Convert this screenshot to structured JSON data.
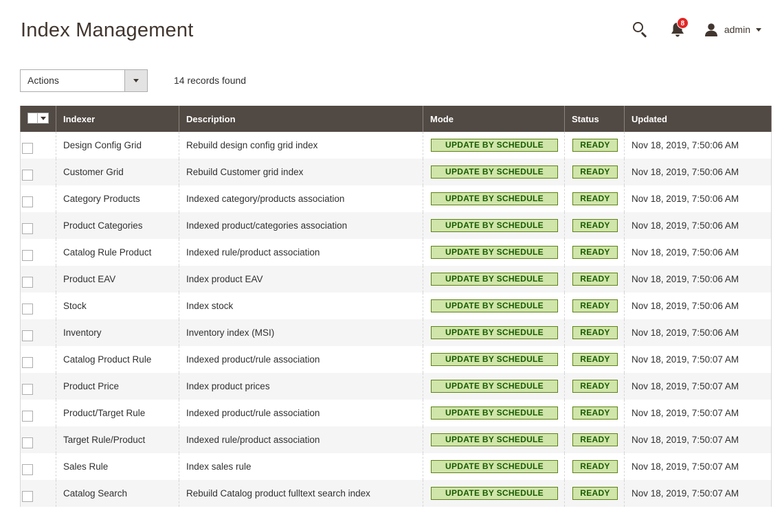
{
  "header": {
    "title": "Index Management",
    "notification_count": "8",
    "user_name": "admin"
  },
  "toolbar": {
    "actions_label": "Actions",
    "records_found": "14 records found"
  },
  "grid": {
    "columns": [
      "Indexer",
      "Description",
      "Mode",
      "Status",
      "Updated"
    ],
    "rows": [
      {
        "indexer": "Design Config Grid",
        "description": "Rebuild design config grid index",
        "mode": "UPDATE BY SCHEDULE",
        "status": "READY",
        "updated": "Nov 18, 2019, 7:50:06 AM"
      },
      {
        "indexer": "Customer Grid",
        "description": "Rebuild Customer grid index",
        "mode": "UPDATE BY SCHEDULE",
        "status": "READY",
        "updated": "Nov 18, 2019, 7:50:06 AM"
      },
      {
        "indexer": "Category Products",
        "description": "Indexed category/products association",
        "mode": "UPDATE BY SCHEDULE",
        "status": "READY",
        "updated": "Nov 18, 2019, 7:50:06 AM"
      },
      {
        "indexer": "Product Categories",
        "description": "Indexed product/categories association",
        "mode": "UPDATE BY SCHEDULE",
        "status": "READY",
        "updated": "Nov 18, 2019, 7:50:06 AM"
      },
      {
        "indexer": "Catalog Rule Product",
        "description": "Indexed rule/product association",
        "mode": "UPDATE BY SCHEDULE",
        "status": "READY",
        "updated": "Nov 18, 2019, 7:50:06 AM"
      },
      {
        "indexer": "Product EAV",
        "description": "Index product EAV",
        "mode": "UPDATE BY SCHEDULE",
        "status": "READY",
        "updated": "Nov 18, 2019, 7:50:06 AM"
      },
      {
        "indexer": "Stock",
        "description": "Index stock",
        "mode": "UPDATE BY SCHEDULE",
        "status": "READY",
        "updated": "Nov 18, 2019, 7:50:06 AM"
      },
      {
        "indexer": "Inventory",
        "description": "Inventory index (MSI)",
        "mode": "UPDATE BY SCHEDULE",
        "status": "READY",
        "updated": "Nov 18, 2019, 7:50:06 AM"
      },
      {
        "indexer": "Catalog Product Rule",
        "description": "Indexed product/rule association",
        "mode": "UPDATE BY SCHEDULE",
        "status": "READY",
        "updated": "Nov 18, 2019, 7:50:07 AM"
      },
      {
        "indexer": "Product Price",
        "description": "Index product prices",
        "mode": "UPDATE BY SCHEDULE",
        "status": "READY",
        "updated": "Nov 18, 2019, 7:50:07 AM"
      },
      {
        "indexer": "Product/Target Rule",
        "description": "Indexed product/rule association",
        "mode": "UPDATE BY SCHEDULE",
        "status": "READY",
        "updated": "Nov 18, 2019, 7:50:07 AM"
      },
      {
        "indexer": "Target Rule/Product",
        "description": "Indexed rule/product association",
        "mode": "UPDATE BY SCHEDULE",
        "status": "READY",
        "updated": "Nov 18, 2019, 7:50:07 AM"
      },
      {
        "indexer": "Sales Rule",
        "description": "Index sales rule",
        "mode": "UPDATE BY SCHEDULE",
        "status": "READY",
        "updated": "Nov 18, 2019, 7:50:07 AM"
      },
      {
        "indexer": "Catalog Search",
        "description": "Rebuild Catalog product fulltext search index",
        "mode": "UPDATE BY SCHEDULE",
        "status": "READY",
        "updated": "Nov 18, 2019, 7:50:07 AM"
      }
    ]
  },
  "icons": {
    "search": "search-icon",
    "notifications": "bell-icon",
    "user": "user-icon",
    "dropdown": "chevron-down-icon"
  },
  "colors": {
    "header_bg": "#514943",
    "badge_bg": "#d0e5a9",
    "badge_border": "#5b8116",
    "badge_text": "#185b00",
    "notification_bg": "#e22626"
  }
}
